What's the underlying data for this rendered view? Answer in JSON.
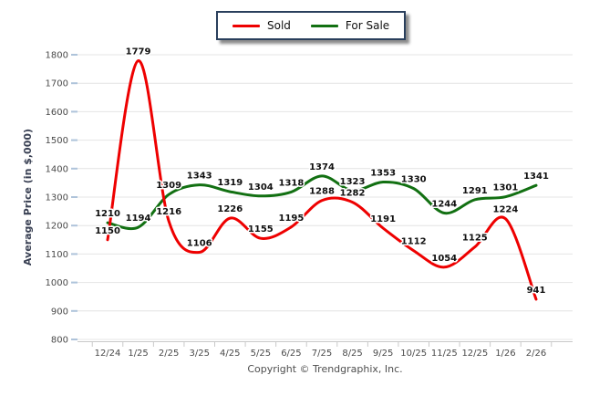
{
  "legend": {
    "items": [
      {
        "label": "Sold",
        "color": "#ee0000"
      },
      {
        "label": "For Sale",
        "color": "#127012"
      }
    ]
  },
  "footer": {
    "copyright": "Copyright © Trendgraphix, Inc."
  },
  "colors": {
    "sold_line": "#ee0000",
    "for_sale_line": "#127012",
    "gridline": "#e4e4e4",
    "axis_line": "#c9c9c9",
    "y_tick": "#aec3da",
    "tick_label": "#4a4a4a",
    "data_label": "#101010",
    "axis_title": "#3a4154",
    "legend_border": "#2a3f5c"
  },
  "chart_data": {
    "type": "line",
    "title": "",
    "xlabel": "",
    "ylabel": "Average Price (in $,000)",
    "ylim": [
      800,
      1800
    ],
    "ytick_step": 100,
    "grid": true,
    "smooth": true,
    "data_labels": true,
    "legend_position": "top-center",
    "categories": [
      "12/24",
      "1/25",
      "2/25",
      "3/25",
      "4/25",
      "5/25",
      "6/25",
      "7/25",
      "8/25",
      "9/25",
      "10/25",
      "11/25",
      "12/25",
      "1/26",
      "2/26"
    ],
    "series": [
      {
        "name": "Sold",
        "color": "#ee0000",
        "values": [
          1150,
          1779,
          1216,
          1106,
          1226,
          1155,
          1195,
          1288,
          1282,
          1191,
          1112,
          1054,
          1125,
          1224,
          941
        ]
      },
      {
        "name": "For Sale",
        "color": "#127012",
        "values": [
          1210,
          1194,
          1309,
          1343,
          1319,
          1304,
          1318,
          1374,
          1323,
          1353,
          1330,
          1244,
          1291,
          1301,
          1341
        ]
      }
    ]
  }
}
